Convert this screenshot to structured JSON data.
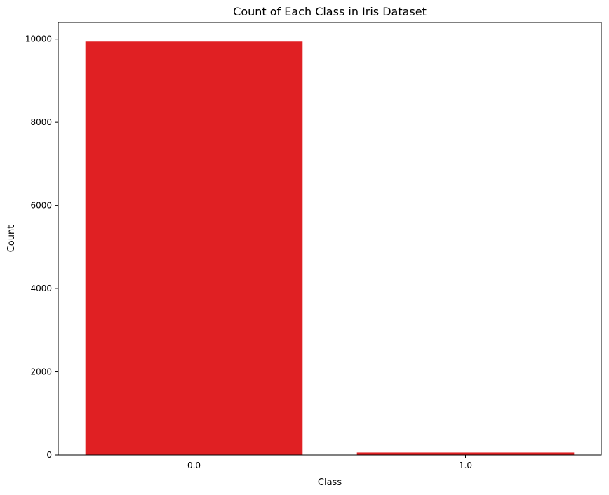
{
  "chart_data": {
    "type": "bar",
    "title": "Count of Each Class in Iris Dataset",
    "xlabel": "Class",
    "ylabel": "Count",
    "categories": [
      "0.0",
      "1.0"
    ],
    "values": [
      9940,
      60
    ],
    "ylim": [
      0,
      10400
    ],
    "yticks": [
      0,
      2000,
      4000,
      6000,
      8000,
      10000
    ],
    "grid": false,
    "legend": "none",
    "bar_color": "#e02023"
  }
}
